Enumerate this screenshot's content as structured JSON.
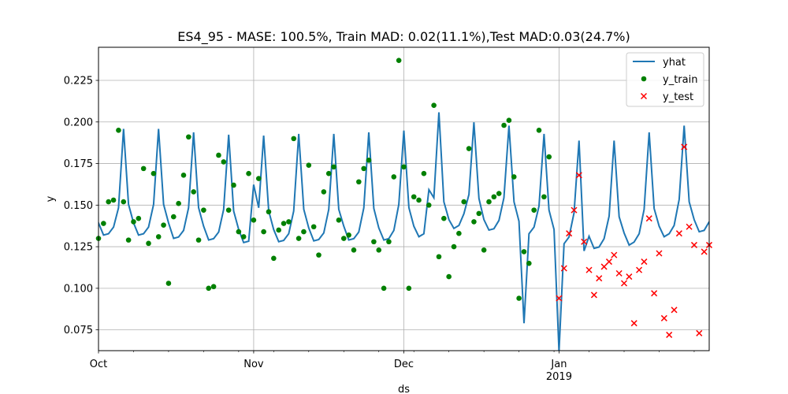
{
  "chart_data": {
    "type": "line",
    "title": "ES4_95 - MASE: 100.5%, Train MAD: 0.02(11.1%),Test MAD:0.03(24.7%)",
    "xlabel": "ds",
    "ylabel": "y",
    "x_start": "2018-10-01",
    "x_end": "2019-01-31",
    "ylim": [
      0.0625,
      0.2449
    ],
    "yticks": [
      0.075,
      0.1,
      0.125,
      0.15,
      0.175,
      0.2,
      0.225
    ],
    "ytick_labels": [
      "0.075",
      "0.100",
      "0.125",
      "0.150",
      "0.175",
      "0.200",
      "0.225"
    ],
    "xticks": [
      {
        "date": "2018-10-01",
        "label": "Oct",
        "sublabel": ""
      },
      {
        "date": "2018-11-01",
        "label": "Nov",
        "sublabel": ""
      },
      {
        "date": "2018-12-01",
        "label": "Dec",
        "sublabel": ""
      },
      {
        "date": "2019-01-01",
        "label": "Jan",
        "sublabel": "2019"
      }
    ],
    "grid": true,
    "legend_position": "top-right",
    "series": [
      {
        "name": "yhat",
        "kind": "line",
        "color": "#1f77b4",
        "points": [
          [
            "2018-09-30",
            0.1465
          ],
          [
            "2018-10-01",
            0.1393
          ],
          [
            "2018-10-02",
            0.132
          ],
          [
            "2018-10-03",
            0.1328
          ],
          [
            "2018-10-04",
            0.1368
          ],
          [
            "2018-10-05",
            0.1484
          ],
          [
            "2018-10-06",
            0.1958
          ],
          [
            "2018-10-07",
            0.1505
          ],
          [
            "2018-10-08",
            0.1393
          ],
          [
            "2018-10-09",
            0.132
          ],
          [
            "2018-10-10",
            0.1328
          ],
          [
            "2018-10-11",
            0.1368
          ],
          [
            "2018-10-12",
            0.1504
          ],
          [
            "2018-10-13",
            0.1958
          ],
          [
            "2018-10-14",
            0.1505
          ],
          [
            "2018-10-15",
            0.1393
          ],
          [
            "2018-10-16",
            0.13
          ],
          [
            "2018-10-17",
            0.1308
          ],
          [
            "2018-10-18",
            0.1348
          ],
          [
            "2018-10-19",
            0.1484
          ],
          [
            "2018-10-20",
            0.1938
          ],
          [
            "2018-10-21",
            0.1485
          ],
          [
            "2018-10-22",
            0.1373
          ],
          [
            "2018-10-23",
            0.129
          ],
          [
            "2018-10-24",
            0.1298
          ],
          [
            "2018-10-25",
            0.1338
          ],
          [
            "2018-10-26",
            0.1474
          ],
          [
            "2018-10-27",
            0.1923
          ],
          [
            "2018-10-28",
            0.1465
          ],
          [
            "2018-10-29",
            0.1353
          ],
          [
            "2018-10-30",
            0.1275
          ],
          [
            "2018-10-31",
            0.1283
          ],
          [
            "2018-11-01",
            0.1623
          ],
          [
            "2018-11-02",
            0.1484
          ],
          [
            "2018-11-03",
            0.1918
          ],
          [
            "2018-11-04",
            0.1465
          ],
          [
            "2018-11-05",
            0.1353
          ],
          [
            "2018-11-06",
            0.128
          ],
          [
            "2018-11-07",
            0.1288
          ],
          [
            "2018-11-08",
            0.1328
          ],
          [
            "2018-11-09",
            0.1464
          ],
          [
            "2018-11-10",
            0.1928
          ],
          [
            "2018-11-11",
            0.1475
          ],
          [
            "2018-11-12",
            0.1363
          ],
          [
            "2018-11-13",
            0.1285
          ],
          [
            "2018-11-14",
            0.1293
          ],
          [
            "2018-11-15",
            0.1333
          ],
          [
            "2018-11-16",
            0.1474
          ],
          [
            "2018-11-17",
            0.1928
          ],
          [
            "2018-11-18",
            0.1475
          ],
          [
            "2018-11-19",
            0.1373
          ],
          [
            "2018-11-20",
            0.129
          ],
          [
            "2018-11-21",
            0.1298
          ],
          [
            "2018-11-22",
            0.1338
          ],
          [
            "2018-11-23",
            0.1484
          ],
          [
            "2018-11-24",
            0.1938
          ],
          [
            "2018-11-25",
            0.148
          ],
          [
            "2018-11-26",
            0.1363
          ],
          [
            "2018-11-27",
            0.129
          ],
          [
            "2018-11-28",
            0.1298
          ],
          [
            "2018-11-29",
            0.1348
          ],
          [
            "2018-11-30",
            0.1504
          ],
          [
            "2018-12-01",
            0.1948
          ],
          [
            "2018-12-02",
            0.1485
          ],
          [
            "2018-12-03",
            0.1373
          ],
          [
            "2018-12-04",
            0.131
          ],
          [
            "2018-12-05",
            0.1328
          ],
          [
            "2018-12-06",
            0.1593
          ],
          [
            "2018-12-07",
            0.1544
          ],
          [
            "2018-12-08",
            0.2058
          ],
          [
            "2018-12-09",
            0.152
          ],
          [
            "2018-12-10",
            0.1413
          ],
          [
            "2018-12-11",
            0.136
          ],
          [
            "2018-12-12",
            0.1378
          ],
          [
            "2018-12-13",
            0.1448
          ],
          [
            "2018-12-14",
            0.1564
          ],
          [
            "2018-12-15",
            0.1998
          ],
          [
            "2018-12-16",
            0.154
          ],
          [
            "2018-12-17",
            0.1413
          ],
          [
            "2018-12-18",
            0.135
          ],
          [
            "2018-12-19",
            0.1358
          ],
          [
            "2018-12-20",
            0.1408
          ],
          [
            "2018-12-21",
            0.1544
          ],
          [
            "2018-12-22",
            0.1978
          ],
          [
            "2018-12-23",
            0.152
          ],
          [
            "2018-12-24",
            0.1403
          ],
          [
            "2018-12-25",
            0.079
          ],
          [
            "2018-12-26",
            0.1328
          ],
          [
            "2018-12-27",
            0.1368
          ],
          [
            "2018-12-28",
            0.1494
          ],
          [
            "2018-12-29",
            0.1928
          ],
          [
            "2018-12-30",
            0.147
          ],
          [
            "2018-12-31",
            0.1353
          ],
          [
            "2019-01-01",
            0.062
          ],
          [
            "2019-01-02",
            0.1268
          ],
          [
            "2019-01-03",
            0.1308
          ],
          [
            "2019-01-04",
            0.1454
          ],
          [
            "2019-01-05",
            0.1888
          ],
          [
            "2019-01-06",
            0.1225
          ],
          [
            "2019-01-07",
            0.1313
          ],
          [
            "2019-01-08",
            0.124
          ],
          [
            "2019-01-09",
            0.1248
          ],
          [
            "2019-01-10",
            0.1298
          ],
          [
            "2019-01-11",
            0.1434
          ],
          [
            "2019-01-12",
            0.1888
          ],
          [
            "2019-01-13",
            0.143
          ],
          [
            "2019-01-14",
            0.1333
          ],
          [
            "2019-01-15",
            0.126
          ],
          [
            "2019-01-16",
            0.1278
          ],
          [
            "2019-01-17",
            0.1328
          ],
          [
            "2019-01-18",
            0.1474
          ],
          [
            "2019-01-19",
            0.1938
          ],
          [
            "2019-01-20",
            0.148
          ],
          [
            "2019-01-21",
            0.1373
          ],
          [
            "2019-01-22",
            0.131
          ],
          [
            "2019-01-23",
            0.1328
          ],
          [
            "2019-01-24",
            0.1378
          ],
          [
            "2019-01-25",
            0.1534
          ],
          [
            "2019-01-26",
            0.1978
          ],
          [
            "2019-01-27",
            0.152
          ],
          [
            "2019-01-28",
            0.1413
          ],
          [
            "2019-01-29",
            0.134
          ],
          [
            "2019-01-30",
            0.1348
          ],
          [
            "2019-01-31",
            0.14
          ]
        ]
      },
      {
        "name": "y_train",
        "kind": "scatter",
        "marker": "circle",
        "color": "#008000",
        "points": [
          [
            "2018-09-30",
            0.135
          ],
          [
            "2018-10-01",
            0.13
          ],
          [
            "2018-10-02",
            0.139
          ],
          [
            "2018-10-03",
            0.152
          ],
          [
            "2018-10-04",
            0.153
          ],
          [
            "2018-10-05",
            0.195
          ],
          [
            "2018-10-06",
            0.152
          ],
          [
            "2018-10-07",
            0.129
          ],
          [
            "2018-10-08",
            0.14
          ],
          [
            "2018-10-09",
            0.142
          ],
          [
            "2018-10-10",
            0.172
          ],
          [
            "2018-10-11",
            0.127
          ],
          [
            "2018-10-12",
            0.169
          ],
          [
            "2018-10-13",
            0.131
          ],
          [
            "2018-10-14",
            0.138
          ],
          [
            "2018-10-15",
            0.103
          ],
          [
            "2018-10-16",
            0.143
          ],
          [
            "2018-10-17",
            0.151
          ],
          [
            "2018-10-18",
            0.168
          ],
          [
            "2018-10-19",
            0.191
          ],
          [
            "2018-10-20",
            0.158
          ],
          [
            "2018-10-21",
            0.129
          ],
          [
            "2018-10-22",
            0.147
          ],
          [
            "2018-10-23",
            0.1
          ],
          [
            "2018-10-24",
            0.101
          ],
          [
            "2018-10-25",
            0.18
          ],
          [
            "2018-10-26",
            0.176
          ],
          [
            "2018-10-27",
            0.147
          ],
          [
            "2018-10-28",
            0.162
          ],
          [
            "2018-10-29",
            0.134
          ],
          [
            "2018-10-30",
            0.131
          ],
          [
            "2018-10-31",
            0.169
          ],
          [
            "2018-11-01",
            0.141
          ],
          [
            "2018-11-02",
            0.166
          ],
          [
            "2018-11-03",
            0.134
          ],
          [
            "2018-11-04",
            0.146
          ],
          [
            "2018-11-05",
            0.118
          ],
          [
            "2018-11-06",
            0.135
          ],
          [
            "2018-11-07",
            0.139
          ],
          [
            "2018-11-08",
            0.14
          ],
          [
            "2018-11-09",
            0.19
          ],
          [
            "2018-11-10",
            0.13
          ],
          [
            "2018-11-11",
            0.134
          ],
          [
            "2018-11-12",
            0.174
          ],
          [
            "2018-11-13",
            0.137
          ],
          [
            "2018-11-14",
            0.12
          ],
          [
            "2018-11-15",
            0.158
          ],
          [
            "2018-11-16",
            0.169
          ],
          [
            "2018-11-17",
            0.173
          ],
          [
            "2018-11-18",
            0.141
          ],
          [
            "2018-11-19",
            0.13
          ],
          [
            "2018-11-20",
            0.132
          ],
          [
            "2018-11-21",
            0.123
          ],
          [
            "2018-11-22",
            0.164
          ],
          [
            "2018-11-23",
            0.172
          ],
          [
            "2018-11-24",
            0.177
          ],
          [
            "2018-11-25",
            0.128
          ],
          [
            "2018-11-26",
            0.123
          ],
          [
            "2018-11-27",
            0.1
          ],
          [
            "2018-11-28",
            0.128
          ],
          [
            "2018-11-29",
            0.167
          ],
          [
            "2018-11-30",
            0.237
          ],
          [
            "2018-12-01",
            0.173
          ],
          [
            "2018-12-02",
            0.1
          ],
          [
            "2018-12-03",
            0.155
          ],
          [
            "2018-12-04",
            0.153
          ],
          [
            "2018-12-05",
            0.169
          ],
          [
            "2018-12-06",
            0.15
          ],
          [
            "2018-12-07",
            0.21
          ],
          [
            "2018-12-08",
            0.119
          ],
          [
            "2018-12-09",
            0.142
          ],
          [
            "2018-12-10",
            0.107
          ],
          [
            "2018-12-11",
            0.125
          ],
          [
            "2018-12-12",
            0.133
          ],
          [
            "2018-12-13",
            0.152
          ],
          [
            "2018-12-14",
            0.184
          ],
          [
            "2018-12-15",
            0.14
          ],
          [
            "2018-12-16",
            0.145
          ],
          [
            "2018-12-17",
            0.123
          ],
          [
            "2018-12-18",
            0.152
          ],
          [
            "2018-12-19",
            0.155
          ],
          [
            "2018-12-20",
            0.157
          ],
          [
            "2018-12-21",
            0.198
          ],
          [
            "2018-12-22",
            0.201
          ],
          [
            "2018-12-23",
            0.167
          ],
          [
            "2018-12-24",
            0.094
          ],
          [
            "2018-12-25",
            0.122
          ],
          [
            "2018-12-26",
            0.115
          ],
          [
            "2018-12-27",
            0.147
          ],
          [
            "2018-12-28",
            0.195
          ],
          [
            "2018-12-29",
            0.155
          ],
          [
            "2018-12-30",
            0.179
          ]
        ]
      },
      {
        "name": "y_test",
        "kind": "scatter",
        "marker": "x",
        "color": "#ff0000",
        "points": [
          [
            "2019-01-01",
            0.094
          ],
          [
            "2019-01-02",
            0.112
          ],
          [
            "2019-01-03",
            0.133
          ],
          [
            "2019-01-04",
            0.147
          ],
          [
            "2019-01-05",
            0.168
          ],
          [
            "2019-01-06",
            0.128
          ],
          [
            "2019-01-07",
            0.111
          ],
          [
            "2019-01-08",
            0.096
          ],
          [
            "2019-01-09",
            0.106
          ],
          [
            "2019-01-10",
            0.113
          ],
          [
            "2019-01-11",
            0.116
          ],
          [
            "2019-01-12",
            0.12
          ],
          [
            "2019-01-13",
            0.109
          ],
          [
            "2019-01-14",
            0.103
          ],
          [
            "2019-01-15",
            0.107
          ],
          [
            "2019-01-16",
            0.079
          ],
          [
            "2019-01-17",
            0.111
          ],
          [
            "2019-01-18",
            0.116
          ],
          [
            "2019-01-19",
            0.142
          ],
          [
            "2019-01-20",
            0.097
          ],
          [
            "2019-01-21",
            0.121
          ],
          [
            "2019-01-22",
            0.082
          ],
          [
            "2019-01-23",
            0.072
          ],
          [
            "2019-01-24",
            0.087
          ],
          [
            "2019-01-25",
            0.133
          ],
          [
            "2019-01-26",
            0.185
          ],
          [
            "2019-01-27",
            0.137
          ],
          [
            "2019-01-28",
            0.126
          ],
          [
            "2019-01-29",
            0.073
          ],
          [
            "2019-01-30",
            0.122
          ],
          [
            "2019-01-31",
            0.126
          ]
        ]
      }
    ]
  }
}
